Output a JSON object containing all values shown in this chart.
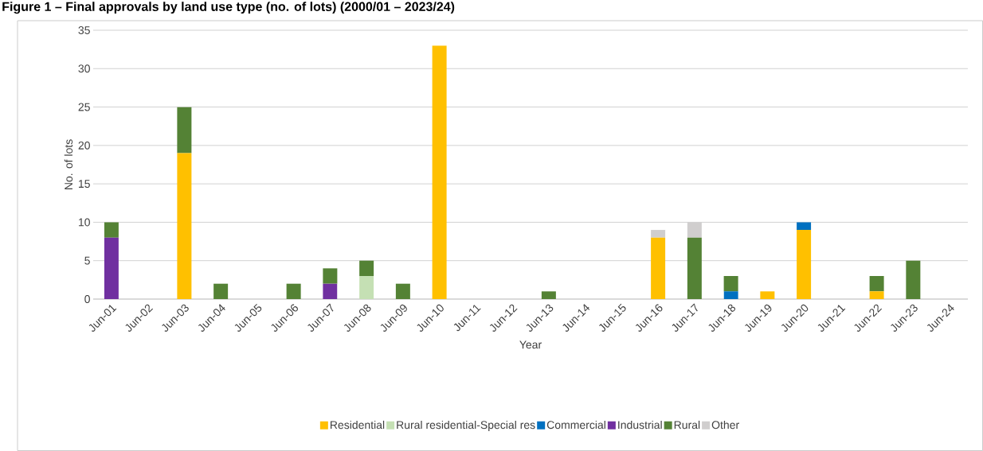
{
  "chart_data": {
    "type": "bar",
    "stacked": true,
    "title": "Figure 1 – Final approvals by land use type (no. of lots) (2000/01 – 2023/24)",
    "xlabel": "Year",
    "ylabel": "No. of lots",
    "categories": [
      "Jun-01",
      "Jun-02",
      "Jun-03",
      "Jun-04",
      "Jun-05",
      "Jun-06",
      "Jun-07",
      "Jun-08",
      "Jun-09",
      "Jun-10",
      "Jun-11",
      "Jun-12",
      "Jun-13",
      "Jun-14",
      "Jun-15",
      "Jun-16",
      "Jun-17",
      "Jun-18",
      "Jun-19",
      "Jun-20",
      "Jun-21",
      "Jun-22",
      "Jun-23",
      "Jun-24"
    ],
    "series": [
      {
        "name": "Residential",
        "color": "#ffc000",
        "values": [
          0,
          0,
          19,
          0,
          0,
          0,
          0,
          0,
          0,
          33,
          0,
          0,
          0,
          0,
          0,
          8,
          0,
          0,
          1,
          9,
          0,
          1,
          0,
          0
        ]
      },
      {
        "name": "Rural residential-Special res",
        "color": "#c5e0b4",
        "values": [
          0,
          0,
          0,
          0,
          0,
          0,
          0,
          3,
          0,
          0,
          0,
          0,
          0,
          0,
          0,
          0,
          0,
          0,
          0,
          0,
          0,
          0,
          0,
          0
        ]
      },
      {
        "name": "Commercial",
        "color": "#0070c0",
        "values": [
          0,
          0,
          0,
          0,
          0,
          0,
          0,
          0,
          0,
          0,
          0,
          0,
          0,
          0,
          0,
          0,
          0,
          1,
          0,
          1,
          0,
          0,
          0,
          0
        ]
      },
      {
        "name": "Industrial",
        "color": "#7030a0",
        "values": [
          8,
          0,
          0,
          0,
          0,
          0,
          2,
          0,
          0,
          0,
          0,
          0,
          0,
          0,
          0,
          0,
          0,
          0,
          0,
          0,
          0,
          0,
          0,
          0
        ]
      },
      {
        "name": "Rural",
        "color": "#548235",
        "values": [
          2,
          0,
          6,
          2,
          0,
          2,
          2,
          2,
          2,
          0,
          0,
          0,
          1,
          0,
          0,
          0,
          8,
          2,
          0,
          0,
          0,
          2,
          5,
          0
        ]
      },
      {
        "name": "Other",
        "color": "#d0cece",
        "values": [
          0,
          0,
          0,
          0,
          0,
          0,
          0,
          0,
          0,
          0,
          0,
          0,
          0,
          0,
          0,
          1,
          2,
          0,
          0,
          0,
          0,
          0,
          0,
          0
        ]
      }
    ],
    "ylim": [
      0,
      35
    ],
    "yticks": [
      0,
      5,
      10,
      15,
      20,
      25,
      30,
      35
    ],
    "grid": "y",
    "legend": "bottom"
  }
}
